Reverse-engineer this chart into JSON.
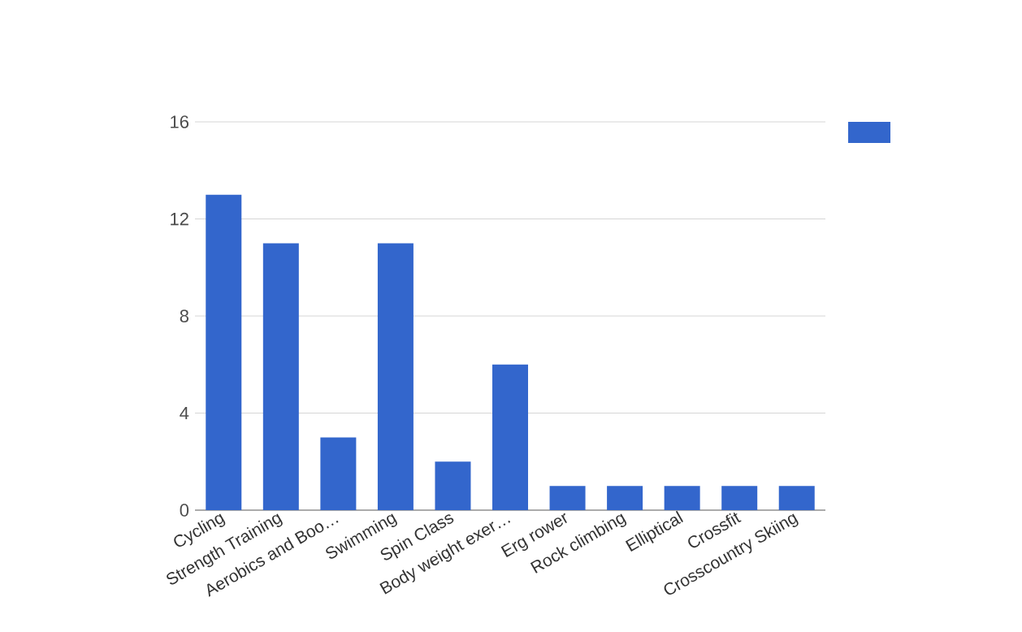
{
  "chart_data": {
    "type": "bar",
    "categories": [
      "Cycling",
      "Strength Training",
      "Aerobics and Boo…",
      "Swimming",
      "Spin Class",
      "Body weight exer…",
      "Erg rower",
      "Rock  climbing",
      "Elliptical",
      "Crossfit",
      "Crosscountry Skiing"
    ],
    "values": [
      13,
      11,
      3,
      11,
      2,
      6,
      1,
      1,
      1,
      1,
      1
    ],
    "color": "#3366cc",
    "ylim": [
      0,
      16
    ],
    "yticks": [
      0,
      4,
      8,
      12,
      16
    ],
    "grid": "y"
  }
}
